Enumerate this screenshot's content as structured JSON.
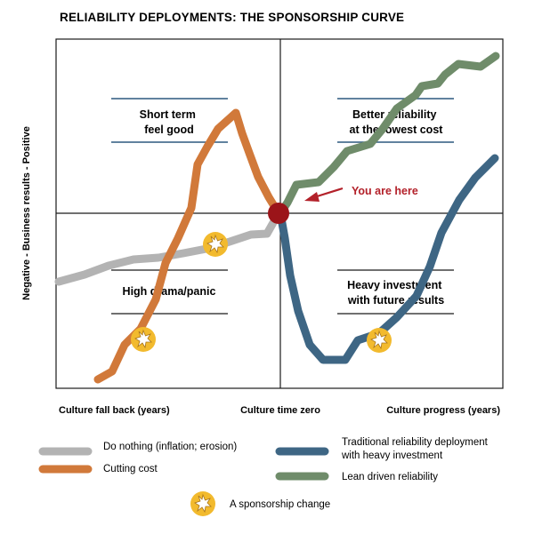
{
  "title": "RELIABILITY DEPLOYMENTS: THE SPONSORSHIP CURVE",
  "y_axis_label": "Negative - Business results - Positive",
  "x_axis": {
    "left": "Culture fall back (years)",
    "center": "Culture time zero",
    "right": "Culture progress (years)"
  },
  "quadrants": {
    "top_left": [
      "Short term",
      "feel good"
    ],
    "top_right": [
      "Better reliability",
      "at the lowest cost"
    ],
    "bottom_left": [
      "High drama/panic"
    ],
    "bottom_right": [
      "Heavy investment",
      "with future results"
    ]
  },
  "annotation": "You are here",
  "legend": {
    "do_nothing": [
      "Do nothing (inflation; erosion)"
    ],
    "cutting_cost": [
      "Cutting cost"
    ],
    "traditional": [
      "Traditional reliability deployment",
      "with heavy investment"
    ],
    "lean": [
      "Lean driven reliability"
    ],
    "sponsorship": [
      "A sponsorship change"
    ]
  },
  "colors": {
    "do_nothing": "#b3b3b3",
    "cutting_cost": "#d1793a",
    "traditional": "#3e6684",
    "lean": "#6f8c6a",
    "marker": "#9b1419",
    "arrow": "#b3212a",
    "burst": "#f2ba2e",
    "rule_blue": "#2d587f"
  },
  "icons": {
    "sponsorship": "burst-icon",
    "origin": "red-dot-marker"
  }
}
